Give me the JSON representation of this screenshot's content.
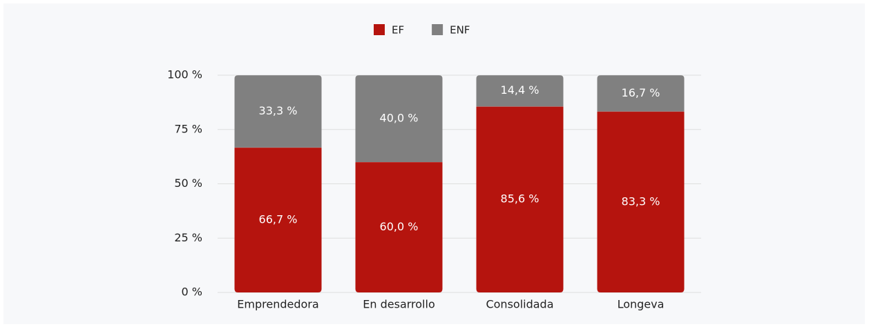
{
  "chart_data": {
    "type": "stacked_bar",
    "categories": [
      "Emprendedora",
      "En desarrollo",
      "Consolidada",
      "Longeva"
    ],
    "series": [
      {
        "name": "EF",
        "color": "#b5140e",
        "values": [
          66.7,
          60.0,
          85.6,
          83.3
        ],
        "value_labels": [
          "66,7 %",
          "60,0 %",
          "85,6 %",
          "83,3 %"
        ]
      },
      {
        "name": "ENF",
        "color": "#808080",
        "values": [
          33.3,
          40.0,
          14.4,
          16.7
        ],
        "value_labels": [
          "33,3 %",
          "40,0 %",
          "14,4 %",
          "16,7 %"
        ]
      }
    ],
    "ylim": [
      0,
      100
    ],
    "yticks": [
      {
        "value": 0,
        "label": "0 %"
      },
      {
        "value": 25,
        "label": "25 %"
      },
      {
        "value": 50,
        "label": "50 %"
      },
      {
        "value": 75,
        "label": "75 %"
      },
      {
        "value": 100,
        "label": "100 %"
      }
    ],
    "grid": true,
    "legend": "top"
  }
}
